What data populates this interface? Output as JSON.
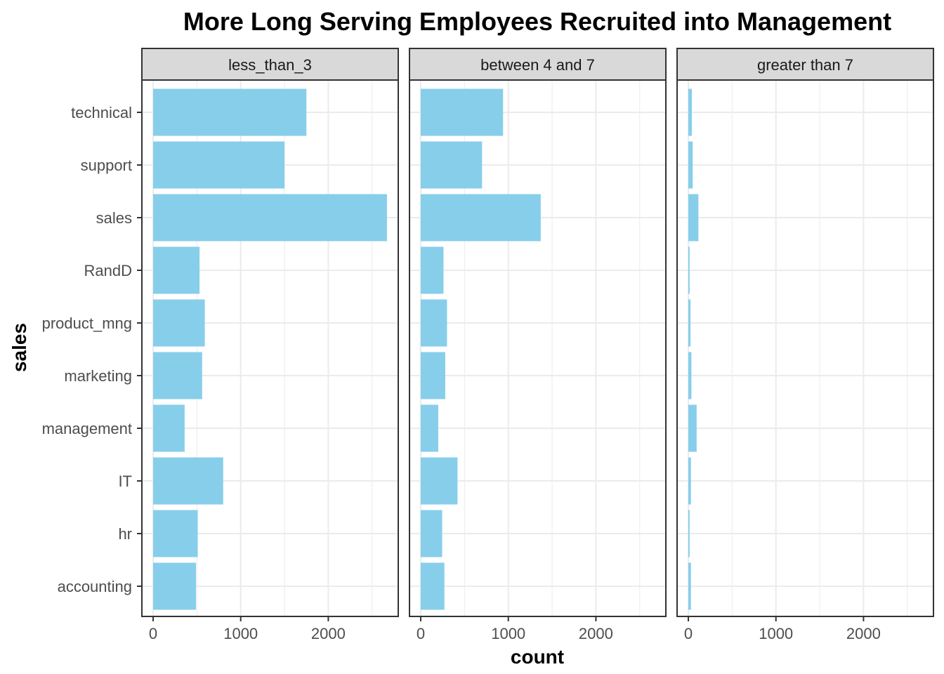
{
  "chart_data": {
    "type": "bar",
    "orientation": "horizontal",
    "faceted": true,
    "title": "More Long Serving Employees Recruited into Management",
    "xlabel": "count",
    "ylabel": "sales",
    "xlim": [
      0,
      2800
    ],
    "x_ticks": [
      "0",
      "1000",
      "2000"
    ],
    "x_tick_values": [
      0,
      1000,
      2000
    ],
    "grid": true,
    "bar_color": "#87CEEB",
    "categories": [
      "technical",
      "support",
      "sales",
      "RandD",
      "product_mng",
      "marketing",
      "management",
      "IT",
      "hr",
      "accounting"
    ],
    "panels": [
      {
        "label": "less_than_3",
        "values": [
          1750,
          1500,
          2670,
          530,
          590,
          560,
          360,
          800,
          510,
          490
        ]
      },
      {
        "label": "between 4 and 7",
        "values": [
          940,
          700,
          1370,
          260,
          300,
          280,
          200,
          420,
          245,
          270
        ]
      },
      {
        "label": "greater than 7",
        "values": [
          40,
          50,
          115,
          15,
          25,
          35,
          95,
          30,
          15,
          30
        ]
      }
    ]
  }
}
